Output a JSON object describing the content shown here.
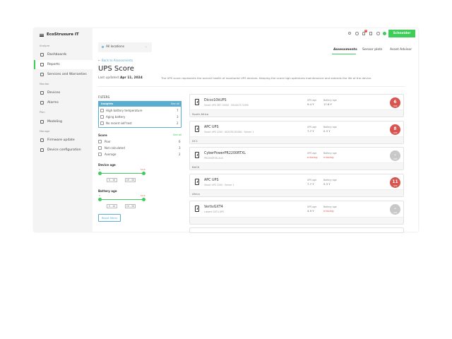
{
  "header": {
    "app_name": "EcoStruxure IT",
    "brand_button": "Schneider",
    "notification_count": "1"
  },
  "sidebar": {
    "sections": [
      {
        "title": "Analyze",
        "items": [
          "Dashboards",
          "Reports",
          "Services and Warranties"
        ]
      },
      {
        "title": "Monitor",
        "items": [
          "Devices",
          "Alarms"
        ]
      },
      {
        "title": "Plan",
        "items": [
          "Modeling"
        ]
      },
      {
        "title": "Manage",
        "items": [
          "Firmware update",
          "Device configuration"
        ]
      }
    ],
    "active": "Reports"
  },
  "location_select": "All locations",
  "tabs": [
    "Assessments",
    "Sensor plots",
    "Asset Advisor"
  ],
  "active_tab": "Assessments",
  "back_link": "← Back to Assessments",
  "title": "UPS Score",
  "last_updated_label": "Last updated:",
  "last_updated": "Apr 11, 2024",
  "description": "The UPS score represents the overall health of monitored UPS devices. Keeping the score high optimizes maintenance and extends the life of the device.",
  "filters": {
    "title": "FILTERS",
    "insights": {
      "title": "Insights",
      "see_all": "See all",
      "items": [
        {
          "label": "High battery temperature",
          "count": "7"
        },
        {
          "label": "Aging battery",
          "count": "3"
        },
        {
          "label": "No recent self test",
          "count": "2"
        }
      ]
    },
    "score": {
      "title": "Score",
      "see_all": "See all",
      "items": [
        {
          "label": "Poor",
          "count": "6"
        },
        {
          "label": "Not calculated",
          "count": "3"
        },
        {
          "label": "Average",
          "count": "2"
        }
      ]
    },
    "device_age": {
      "title": "Device age",
      "min": "0",
      "max": "54.0",
      "from": "0 - 10",
      "to": "10 - 20"
    },
    "battery_age": {
      "title": "Battery age",
      "min": "0",
      "max": "54.0",
      "from": "0 - 10",
      "to": "10 - 20"
    },
    "reset": "Reset filters"
  },
  "ups_age_label": "UPS age",
  "battery_age_label": "Battery age",
  "devices": [
    {
      "name": "Dicco10kUPS",
      "sub": "Smart UPS SRT 10000 · 00UA47172495",
      "ups_age": "9.4 Y",
      "battery_age": "17.6 Y",
      "score": "6",
      "location": "South Africa"
    },
    {
      "name": "APC UPS",
      "sub": "Smart UPS 2200 · AS2035150280 · Server 1",
      "ups_age": "7.7 Y",
      "battery_age": "0.3 Y",
      "score": "8",
      "location": "DC1"
    },
    {
      "name": "CyberPowerPR2200RTXL",
      "sub": "PR2200RTXL2UA",
      "ups_age": "missing",
      "battery_age": "missing",
      "score": "–",
      "location": "BACK"
    },
    {
      "name": "APC UPS",
      "sub": "Smart UPS 2200 · Server 1",
      "ups_age": "7.7 Y",
      "battery_age": "5.3 Y",
      "score": "11",
      "location": "Africa"
    },
    {
      "name": "VertivGXT4",
      "sub": "Liebert GXT4 UPS",
      "ups_age": "4.9 Y",
      "battery_age": "missing",
      "score": "–",
      "location": ""
    }
  ],
  "colors": {
    "accent": "#3dcd58",
    "insights_header": "#5aacd0",
    "poor": "#d9534f",
    "missing": "#e05a4f"
  }
}
